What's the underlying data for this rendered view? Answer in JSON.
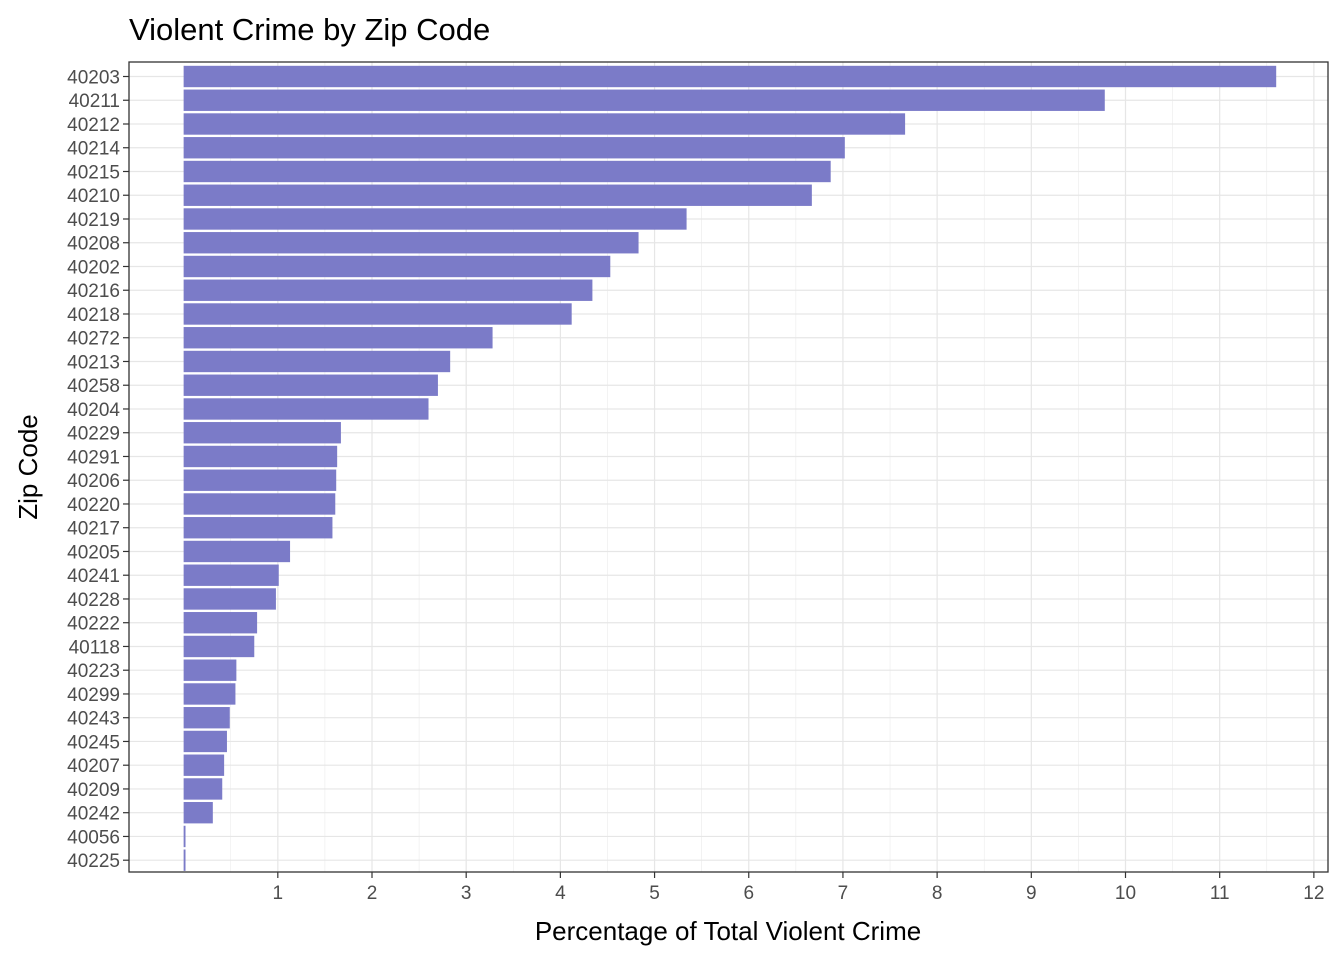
{
  "chart_data": {
    "type": "bar",
    "orientation": "horizontal",
    "title": "Violent Crime by Zip Code",
    "xlabel": "Percentage of Total Violent Crime",
    "ylabel": "Zip Code",
    "xlim": [
      -0.58,
      12.15
    ],
    "xticks": [
      1,
      2,
      3,
      4,
      5,
      6,
      7,
      8,
      9,
      10,
      11,
      12
    ],
    "grid": true,
    "bar_color": "#7b7bc8",
    "categories": [
      "40203",
      "40211",
      "40212",
      "40214",
      "40215",
      "40210",
      "40219",
      "40208",
      "40202",
      "40216",
      "40218",
      "40272",
      "40213",
      "40258",
      "40204",
      "40229",
      "40291",
      "40206",
      "40220",
      "40217",
      "40205",
      "40241",
      "40228",
      "40222",
      "40118",
      "40223",
      "40299",
      "40243",
      "40245",
      "40207",
      "40209",
      "40242",
      "40056",
      "40225"
    ],
    "values": [
      11.6,
      9.78,
      7.66,
      7.02,
      6.87,
      6.67,
      5.34,
      4.83,
      4.53,
      4.34,
      4.12,
      3.28,
      2.83,
      2.7,
      2.6,
      1.67,
      1.63,
      1.62,
      1.61,
      1.58,
      1.13,
      1.01,
      0.98,
      0.78,
      0.75,
      0.56,
      0.55,
      0.49,
      0.46,
      0.43,
      0.41,
      0.31,
      0.02,
      0.02
    ]
  }
}
